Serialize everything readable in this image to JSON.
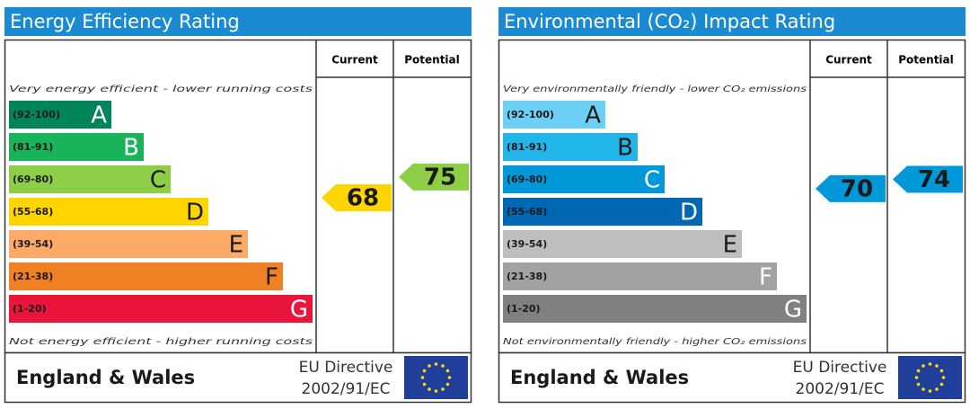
{
  "panels": [
    {
      "title": "Energy Efficiency Rating",
      "current_header": "Current",
      "potential_header": "Potential",
      "top_note": "Very energy efficient - lower running costs",
      "bottom_note": "Not energy efficient - higher running costs",
      "bands": [
        {
          "range": "(92-100)",
          "letter": "A",
          "color": "#00855a",
          "text_color": "#ffffff"
        },
        {
          "range": "(81-91)",
          "letter": "B",
          "color": "#19b459",
          "text_color": "#ffffff"
        },
        {
          "range": "(69-80)",
          "letter": "C",
          "color": "#8dce46",
          "text_color": "#1a1a1a"
        },
        {
          "range": "(55-68)",
          "letter": "D",
          "color": "#ffd500",
          "text_color": "#1a1a1a"
        },
        {
          "range": "(39-54)",
          "letter": "E",
          "color": "#fcaa65",
          "text_color": "#1a1a1a"
        },
        {
          "range": "(21-38)",
          "letter": "F",
          "color": "#ef8023",
          "text_color": "#1a1a1a"
        },
        {
          "range": "(1-20)",
          "letter": "G",
          "color": "#e9153b",
          "text_color": "#ffffff"
        }
      ],
      "current": 68,
      "potential": 75,
      "region": "England & Wales",
      "directive": "EU Directive",
      "directive_code": "2002/91/EC"
    },
    {
      "title": "Environmental (CO₂) Impact Rating",
      "current_header": "Current",
      "potential_header": "Potential",
      "top_note": "Very environmentally friendly - lower CO₂ emissions",
      "bottom_note": "Not environmentally friendly - higher CO₂ emissions",
      "bands": [
        {
          "range": "(92-100)",
          "letter": "A",
          "color": "#6ccff5",
          "text_color": "#1a1a1a"
        },
        {
          "range": "(81-91)",
          "letter": "B",
          "color": "#22b5e9",
          "text_color": "#1a1a1a"
        },
        {
          "range": "(69-80)",
          "letter": "C",
          "color": "#0098d8",
          "text_color": "#ffffff"
        },
        {
          "range": "(55-68)",
          "letter": "D",
          "color": "#0068b3",
          "text_color": "#ffffff"
        },
        {
          "range": "(39-54)",
          "letter": "E",
          "color": "#bebebe",
          "text_color": "#1a1a1a"
        },
        {
          "range": "(21-38)",
          "letter": "F",
          "color": "#a2a2a2",
          "text_color": "#ffffff"
        },
        {
          "range": "(1-20)",
          "letter": "G",
          "color": "#808080",
          "text_color": "#ffffff"
        }
      ],
      "current": 70,
      "potential": 74,
      "region": "England & Wales",
      "directive": "EU Directive",
      "directive_code": "2002/91/EC"
    }
  ]
}
